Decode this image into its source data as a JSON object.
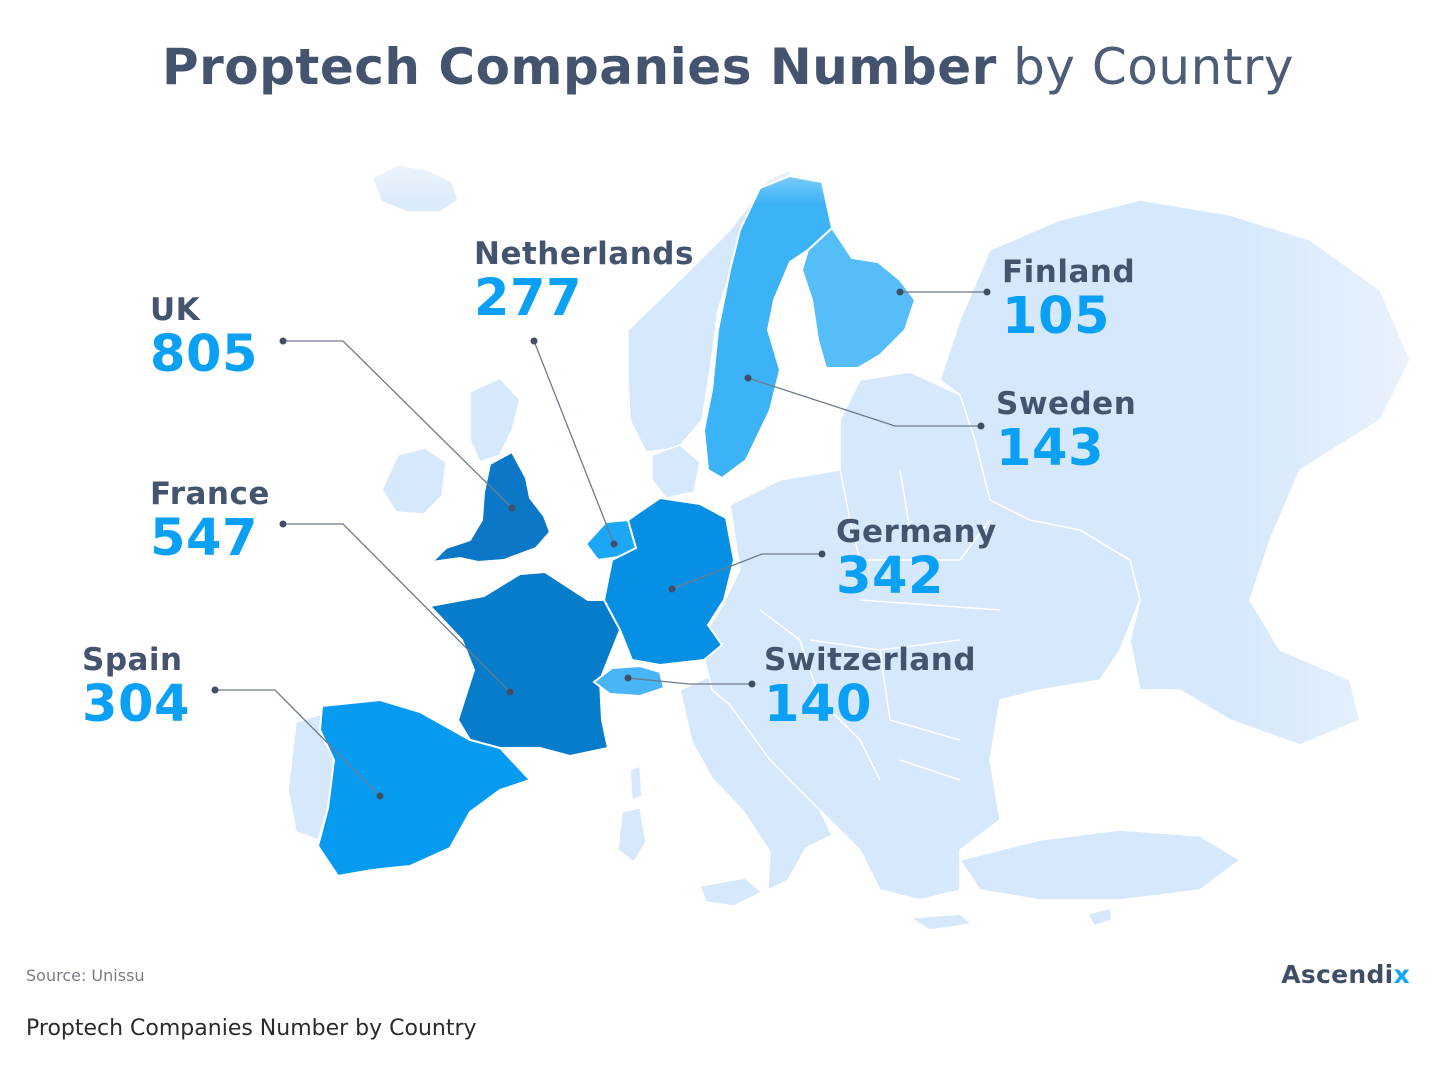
{
  "title": {
    "bold": "Proptech Companies Number",
    "light": "by Country"
  },
  "colors": {
    "land": "#d6e8fb",
    "land_fade": "#e9f3fd",
    "border": "#ffffff",
    "uk": "#0a78c6",
    "france": "#067ccb",
    "germany": "#078fe3",
    "spain": "#069bf0",
    "netherlands": "#1ba7f6",
    "sweden": "#3cb2f7",
    "finland": "#55bdf8",
    "switzerland": "#48b5f6",
    "label_name": "#44546f",
    "label_value": "#0aa0f5"
  },
  "chart_data": {
    "type": "choropleth",
    "title": "Proptech Companies Number by Country",
    "countries": [
      {
        "name": "UK",
        "value": 805
      },
      {
        "name": "France",
        "value": 547
      },
      {
        "name": "Germany",
        "value": 342
      },
      {
        "name": "Spain",
        "value": 304
      },
      {
        "name": "Netherlands",
        "value": 277
      },
      {
        "name": "Sweden",
        "value": 143
      },
      {
        "name": "Switzerland",
        "value": 140
      },
      {
        "name": "Finland",
        "value": 105
      }
    ]
  },
  "labels": {
    "uk": {
      "name": "UK",
      "value": "805"
    },
    "france": {
      "name": "France",
      "value": "547"
    },
    "spain": {
      "name": "Spain",
      "value": "304"
    },
    "netherlands": {
      "name": "Netherlands",
      "value": "277"
    },
    "finland": {
      "name": "Finland",
      "value": "105"
    },
    "sweden": {
      "name": "Sweden",
      "value": "143"
    },
    "germany": {
      "name": "Germany",
      "value": "342"
    },
    "switzerland": {
      "name": "Switzerland",
      "value": "140"
    }
  },
  "footer": {
    "source": "Source: Unissu",
    "brand_main": "Ascendi",
    "brand_accent": "x",
    "caption": "Proptech Companies Number by Country"
  }
}
